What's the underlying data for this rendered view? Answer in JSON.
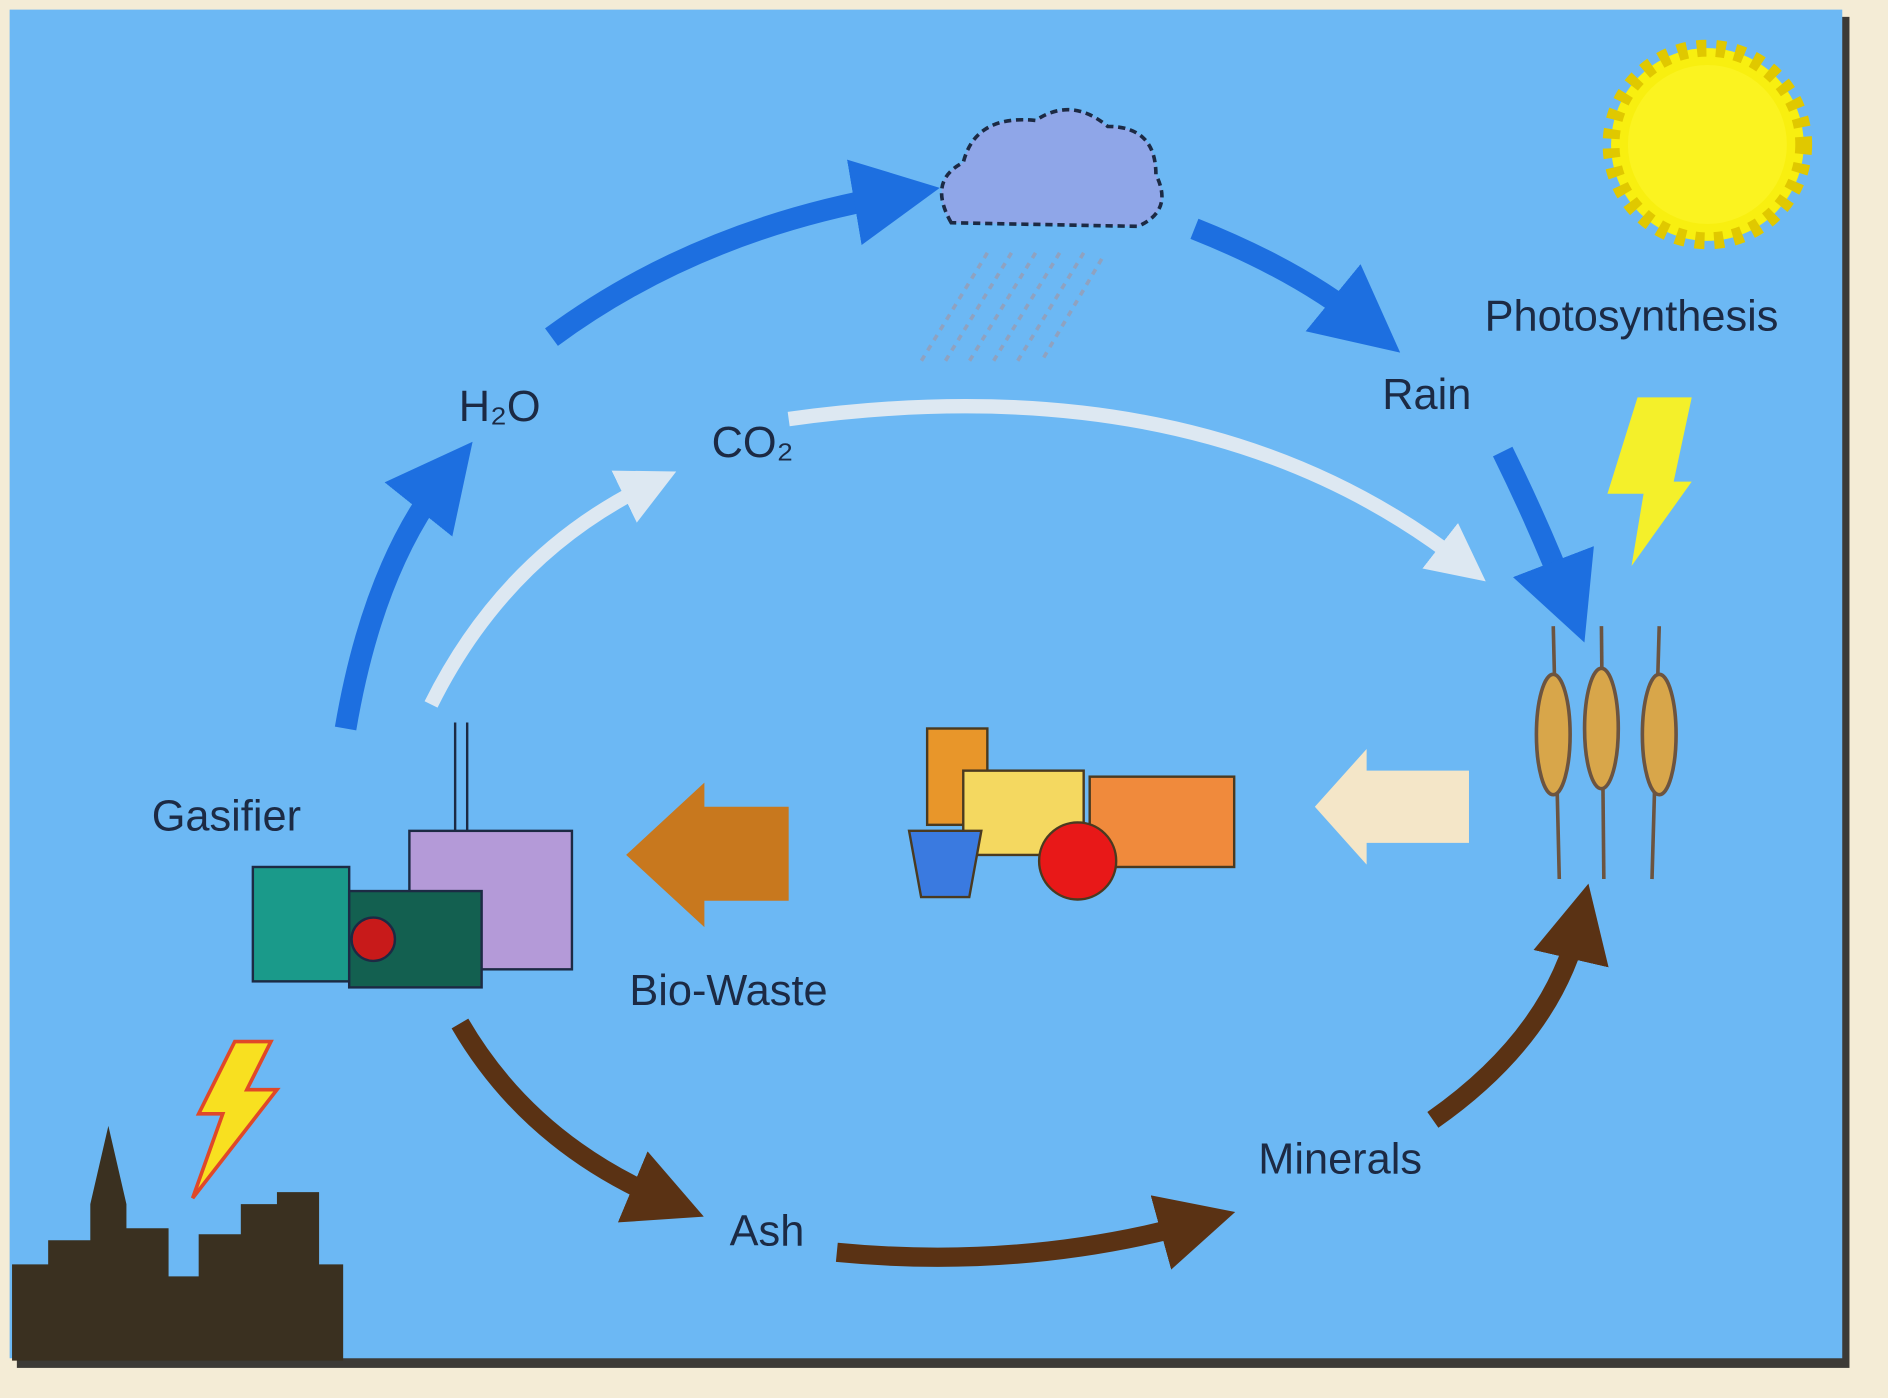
{
  "nodes": [
    {
      "label": "Photosynthesis"
    },
    {
      "label": "Rain"
    },
    {
      "label": "H₂O"
    },
    {
      "label": "CO₂"
    },
    {
      "label": "Gasifier"
    },
    {
      "label": "Bio-Waste"
    },
    {
      "label": "Ash"
    },
    {
      "label": "Minerals"
    }
  ]
}
